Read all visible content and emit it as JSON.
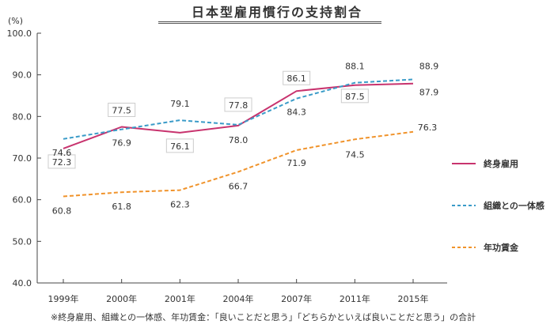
{
  "title": "日本型雇用慣行の支持割合",
  "footnote": "※終身雇用、組織との一体感、年功賃金：「良いことだと思う」「どちらかといえば良いことだと思う」の合計",
  "chart_data": {
    "type": "line",
    "title": "日本型雇用慣行の支持割合",
    "ylabel": "(%)",
    "xlabel": "",
    "categories": [
      "1999年",
      "2000年",
      "2001年",
      "2004年",
      "2007年",
      "2011年",
      "2015年"
    ],
    "ylim": [
      40,
      100
    ],
    "yticks": [
      "40.0",
      "50.0",
      "60.0",
      "70.0",
      "80.0",
      "90.0",
      "100.0"
    ],
    "grid": false,
    "legend_position": "right",
    "series": [
      {
        "name": "終身雇用",
        "values": [
          72.3,
          77.5,
          76.1,
          77.8,
          86.1,
          87.5,
          87.9
        ],
        "labels": [
          "72.3",
          "77.5",
          "76.1",
          "77.8",
          "86.1",
          "87.5",
          "87.9"
        ],
        "color": "#c8336e",
        "dash": "solid"
      },
      {
        "name": "組織との一体感",
        "values": [
          74.6,
          76.9,
          79.1,
          78.0,
          84.3,
          88.1,
          88.9
        ],
        "labels": [
          "74.6",
          "76.9",
          "79.1",
          "78.0",
          "84.3",
          "88.1",
          "88.9"
        ],
        "color": "#3a9bc8",
        "dash": "dashed"
      },
      {
        "name": "年功賃金",
        "values": [
          60.8,
          61.8,
          62.3,
          66.7,
          71.9,
          74.5,
          76.3
        ],
        "labels": [
          "60.8",
          "61.8",
          "62.3",
          "66.7",
          "71.9",
          "74.5",
          "76.3"
        ],
        "color": "#f0932b",
        "dash": "dashed"
      }
    ]
  }
}
